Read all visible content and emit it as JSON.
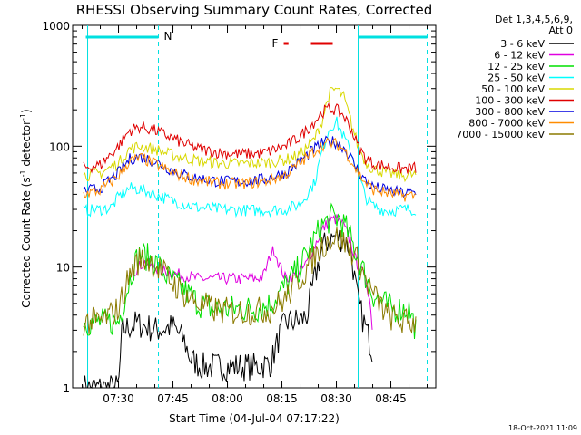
{
  "chart_data": {
    "type": "line",
    "title": "RHESSI Observing Summary Count Rates, Corrected",
    "xlabel": "Start Time (04-Jul-04 07:17:22)",
    "ylabel": "Corrected Count Rate (s⁻¹ detector⁻¹)",
    "ylabel_parts": {
      "main": "Corrected Count Rate (s",
      "exp1": "-1",
      "mid": " detector",
      "exp2": "-1",
      "end": ")"
    },
    "yscale": "log",
    "ylim": [
      1,
      1000
    ],
    "xlim": [
      "07:17:22",
      "08:57:22"
    ],
    "x_ticks": [
      {
        "label": "07:30",
        "minute": 30
      },
      {
        "label": "07:45",
        "minute": 45
      },
      {
        "label": "08:00",
        "minute": 60
      },
      {
        "label": "08:15",
        "minute": 75
      },
      {
        "label": "08:30",
        "minute": 90
      },
      {
        "label": "08:45",
        "minute": 105
      }
    ],
    "y_ticks": [
      {
        "label": "1",
        "value": 1
      },
      {
        "label": "10",
        "value": 10
      },
      {
        "label": "100",
        "value": 100
      },
      {
        "label": "1000",
        "value": 1000
      }
    ],
    "legend_header": [
      "Det 1,3,4,5,6,9,",
      "Att 0"
    ],
    "legend_position": "right",
    "series": [
      {
        "name": "3 - 6 keV",
        "color": "#000000",
        "points": [
          [
            20,
            1
          ],
          [
            30,
            1
          ],
          [
            31,
            3
          ],
          [
            35,
            3.4
          ],
          [
            38,
            3.2
          ],
          [
            40,
            3
          ],
          [
            45,
            3.2
          ],
          [
            48,
            2.5
          ],
          [
            50,
            1.7
          ],
          [
            53,
            1.5
          ],
          [
            60,
            1.5
          ],
          [
            68,
            1.5
          ],
          [
            72,
            1.6
          ],
          [
            74,
            2.5
          ],
          [
            76,
            3.5
          ],
          [
            80,
            3.6
          ],
          [
            82,
            4
          ],
          [
            84,
            8
          ],
          [
            86,
            14
          ],
          [
            88,
            17
          ],
          [
            90,
            18
          ],
          [
            92,
            17
          ],
          [
            94,
            14
          ],
          [
            95,
            8
          ],
          [
            96,
            5
          ],
          [
            97,
            4
          ],
          [
            100,
            2
          ]
        ]
      },
      {
        "name": "6 - 12 keV",
        "color": "#e000e0",
        "points": [
          [
            34,
            9
          ],
          [
            37,
            11
          ],
          [
            40,
            10
          ],
          [
            44,
            9
          ],
          [
            48,
            8.5
          ],
          [
            52,
            8
          ],
          [
            58,
            8
          ],
          [
            64,
            8
          ],
          [
            68,
            8
          ],
          [
            70,
            8.5
          ],
          [
            72,
            13
          ],
          [
            73,
            14
          ],
          [
            74,
            11
          ],
          [
            76,
            8
          ],
          [
            80,
            9
          ],
          [
            82,
            11
          ],
          [
            84,
            15
          ],
          [
            86,
            20
          ],
          [
            88,
            24
          ],
          [
            90,
            25
          ],
          [
            92,
            22
          ],
          [
            94,
            16
          ],
          [
            95,
            12
          ],
          [
            97,
            9
          ],
          [
            98,
            8
          ],
          [
            99,
            6
          ],
          [
            100,
            3
          ]
        ]
      },
      {
        "name": "12 - 25 keV",
        "color": "#00e000",
        "points": [
          [
            20,
            3.5
          ],
          [
            25,
            3.5
          ],
          [
            30,
            3.5
          ],
          [
            32,
            6
          ],
          [
            34,
            10
          ],
          [
            36,
            13
          ],
          [
            38,
            12
          ],
          [
            40,
            11
          ],
          [
            44,
            8
          ],
          [
            48,
            6.5
          ],
          [
            52,
            5
          ],
          [
            56,
            4.5
          ],
          [
            60,
            4.5
          ],
          [
            64,
            4.5
          ],
          [
            68,
            4.5
          ],
          [
            72,
            5
          ],
          [
            76,
            7
          ],
          [
            80,
            10
          ],
          [
            83,
            15
          ],
          [
            86,
            22
          ],
          [
            89,
            26
          ],
          [
            91,
            25
          ],
          [
            93,
            20
          ],
          [
            95,
            14
          ],
          [
            97,
            10
          ],
          [
            100,
            6
          ],
          [
            105,
            4.5
          ],
          [
            110,
            4.5
          ],
          [
            112,
            3
          ]
        ]
      },
      {
        "name": "25 - 50 keV",
        "color": "#00ffff",
        "points": [
          [
            20,
            29
          ],
          [
            25,
            30
          ],
          [
            28,
            31
          ],
          [
            30,
            38
          ],
          [
            33,
            45
          ],
          [
            36,
            44
          ],
          [
            40,
            40
          ],
          [
            44,
            36
          ],
          [
            48,
            33
          ],
          [
            52,
            31
          ],
          [
            58,
            30
          ],
          [
            64,
            29.5
          ],
          [
            70,
            29.5
          ],
          [
            76,
            30
          ],
          [
            80,
            33
          ],
          [
            84,
            50
          ],
          [
            86,
            90
          ],
          [
            88,
            140
          ],
          [
            90,
            160
          ],
          [
            92,
            120
          ],
          [
            94,
            90
          ],
          [
            96,
            60
          ],
          [
            98,
            38
          ],
          [
            100,
            32
          ],
          [
            104,
            29
          ],
          [
            108,
            30
          ],
          [
            112,
            30
          ]
        ]
      },
      {
        "name": "50 - 100 keV",
        "color": "#d8d800",
        "points": [
          [
            20,
            57
          ],
          [
            25,
            60
          ],
          [
            30,
            72
          ],
          [
            33,
            95
          ],
          [
            36,
            100
          ],
          [
            40,
            95
          ],
          [
            44,
            86
          ],
          [
            48,
            80
          ],
          [
            52,
            76
          ],
          [
            58,
            72
          ],
          [
            64,
            72
          ],
          [
            70,
            73
          ],
          [
            76,
            77
          ],
          [
            80,
            85
          ],
          [
            84,
            115
          ],
          [
            86,
            160
          ],
          [
            88,
            270
          ],
          [
            90,
            300
          ],
          [
            92,
            255
          ],
          [
            94,
            160
          ],
          [
            96,
            100
          ],
          [
            98,
            75
          ],
          [
            100,
            65
          ],
          [
            104,
            60
          ],
          [
            108,
            57
          ],
          [
            112,
            58
          ]
        ]
      },
      {
        "name": "100 - 300 keV",
        "color": "#e00000",
        "points": [
          [
            20,
            66
          ],
          [
            25,
            70
          ],
          [
            30,
            100
          ],
          [
            33,
            135
          ],
          [
            36,
            145
          ],
          [
            40,
            135
          ],
          [
            44,
            120
          ],
          [
            48,
            105
          ],
          [
            52,
            95
          ],
          [
            58,
            88
          ],
          [
            64,
            86
          ],
          [
            70,
            88
          ],
          [
            76,
            100
          ],
          [
            80,
            120
          ],
          [
            84,
            160
          ],
          [
            86,
            190
          ],
          [
            88,
            205
          ],
          [
            90,
            200
          ],
          [
            92,
            180
          ],
          [
            94,
            140
          ],
          [
            96,
            100
          ],
          [
            98,
            80
          ],
          [
            100,
            72
          ],
          [
            104,
            68
          ],
          [
            108,
            65
          ],
          [
            112,
            66
          ]
        ]
      },
      {
        "name": "300 - 800 keV",
        "color": "#0000e0",
        "points": [
          [
            20,
            42
          ],
          [
            25,
            45
          ],
          [
            30,
            60
          ],
          [
            33,
            78
          ],
          [
            36,
            82
          ],
          [
            40,
            75
          ],
          [
            44,
            65
          ],
          [
            48,
            58
          ],
          [
            52,
            54
          ],
          [
            58,
            51
          ],
          [
            64,
            51
          ],
          [
            70,
            53
          ],
          [
            76,
            60
          ],
          [
            80,
            75
          ],
          [
            84,
            95
          ],
          [
            86,
            105
          ],
          [
            88,
            110
          ],
          [
            90,
            108
          ],
          [
            92,
            98
          ],
          [
            94,
            80
          ],
          [
            96,
            62
          ],
          [
            98,
            52
          ],
          [
            100,
            46
          ],
          [
            104,
            43
          ],
          [
            108,
            41
          ],
          [
            112,
            41
          ]
        ]
      },
      {
        "name": "800 - 7000 keV",
        "color": "#ff8c00",
        "points": [
          [
            20,
            40
          ],
          [
            25,
            43
          ],
          [
            30,
            57
          ],
          [
            33,
            75
          ],
          [
            36,
            80
          ],
          [
            40,
            72
          ],
          [
            44,
            62
          ],
          [
            48,
            56
          ],
          [
            52,
            52
          ],
          [
            58,
            49
          ],
          [
            64,
            49
          ],
          [
            70,
            51
          ],
          [
            76,
            58
          ],
          [
            80,
            72
          ],
          [
            84,
            92
          ],
          [
            86,
            102
          ],
          [
            88,
            106
          ],
          [
            90,
            104
          ],
          [
            92,
            95
          ],
          [
            94,
            77
          ],
          [
            96,
            60
          ],
          [
            98,
            50
          ],
          [
            100,
            44
          ],
          [
            104,
            41
          ],
          [
            108,
            39
          ],
          [
            112,
            39
          ]
        ]
      },
      {
        "name": "7000 - 15000 keV",
        "color": "#8b7a00",
        "points": [
          [
            20,
            3.5
          ],
          [
            25,
            3.5
          ],
          [
            30,
            4.5
          ],
          [
            32,
            7
          ],
          [
            34,
            10
          ],
          [
            36,
            11.5
          ],
          [
            38,
            11.5
          ],
          [
            40,
            10.5
          ],
          [
            44,
            8
          ],
          [
            48,
            6
          ],
          [
            52,
            5
          ],
          [
            56,
            4.5
          ],
          [
            60,
            4.3
          ],
          [
            64,
            4.3
          ],
          [
            68,
            4.3
          ],
          [
            72,
            4.5
          ],
          [
            76,
            5.5
          ],
          [
            80,
            8
          ],
          [
            83,
            11
          ],
          [
            86,
            15
          ],
          [
            88,
            17
          ],
          [
            90,
            17.5
          ],
          [
            92,
            16
          ],
          [
            94,
            14
          ],
          [
            96,
            11
          ],
          [
            98,
            8
          ],
          [
            100,
            6
          ],
          [
            104,
            4
          ],
          [
            108,
            3.5
          ],
          [
            112,
            3.5
          ]
        ]
      }
    ],
    "annotations": {
      "attenuator_marker": "N",
      "flare_marker": "F",
      "timestamp": "18-Oct-2021 11:09"
    },
    "night_segments": [
      [
        21,
        41
      ],
      [
        96,
        115
      ]
    ],
    "flare_segments": [
      [
        75.5,
        76.8
      ],
      [
        83,
        89
      ]
    ],
    "colors": {
      "night": "#00e0e0",
      "flare": "#e00000",
      "axis": "#000000"
    }
  }
}
